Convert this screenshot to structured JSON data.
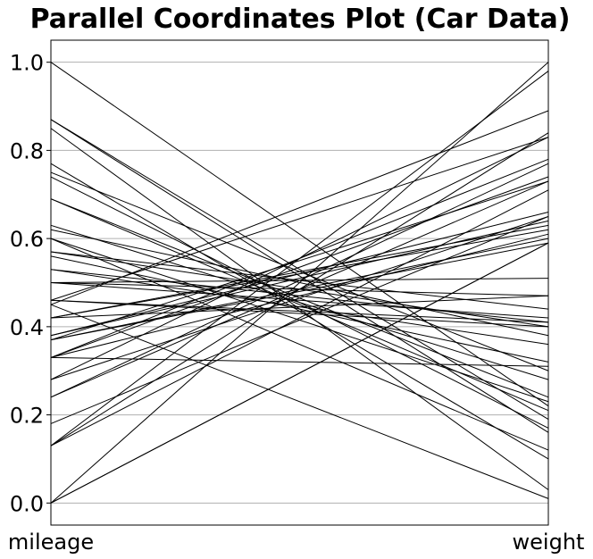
{
  "chart_data": {
    "type": "parallel-coordinates",
    "title": "Parallel Coordinates Plot (Car Data)",
    "axes": [
      "mileage",
      "weight"
    ],
    "ylim": [
      -0.05,
      1.05
    ],
    "yticks": [
      "0.0",
      "0.2",
      "0.4",
      "0.6",
      "0.8",
      "1.0"
    ],
    "grid": true,
    "line_color": "#000000",
    "lines": [
      [
        1.0,
        0.22
      ],
      [
        0.87,
        0.16
      ],
      [
        0.87,
        0.19
      ],
      [
        0.85,
        0.03
      ],
      [
        0.77,
        0.1
      ],
      [
        0.75,
        0.3
      ],
      [
        0.74,
        0.17
      ],
      [
        0.69,
        0.24
      ],
      [
        0.69,
        0.21
      ],
      [
        0.63,
        0.28
      ],
      [
        0.62,
        0.38
      ],
      [
        0.6,
        0.23
      ],
      [
        0.6,
        0.12
      ],
      [
        0.57,
        0.4
      ],
      [
        0.57,
        0.44
      ],
      [
        0.56,
        0.32
      ],
      [
        0.53,
        0.41
      ],
      [
        0.53,
        0.36
      ],
      [
        0.5,
        0.42
      ],
      [
        0.5,
        0.51
      ],
      [
        0.5,
        0.47
      ],
      [
        0.46,
        0.41
      ],
      [
        0.46,
        0.4
      ],
      [
        0.46,
        0.83
      ],
      [
        0.45,
        0.89
      ],
      [
        0.45,
        0.01
      ],
      [
        0.42,
        0.47
      ],
      [
        0.42,
        0.63
      ],
      [
        0.42,
        0.62
      ],
      [
        0.38,
        0.64
      ],
      [
        0.38,
        0.66
      ],
      [
        0.37,
        0.73
      ],
      [
        0.37,
        0.6
      ],
      [
        0.37,
        0.59
      ],
      [
        0.33,
        0.74
      ],
      [
        0.33,
        0.78
      ],
      [
        0.33,
        0.61
      ],
      [
        0.33,
        0.31
      ],
      [
        0.28,
        0.65
      ],
      [
        0.28,
        0.83
      ],
      [
        0.24,
        0.73
      ],
      [
        0.24,
        0.77
      ],
      [
        0.18,
        0.65
      ],
      [
        0.13,
        0.98
      ],
      [
        0.13,
        0.84
      ],
      [
        0.13,
        0.71
      ],
      [
        0.0,
        1.0
      ],
      [
        0.0,
        0.59
      ],
      [
        0.0,
        0.59
      ]
    ]
  }
}
